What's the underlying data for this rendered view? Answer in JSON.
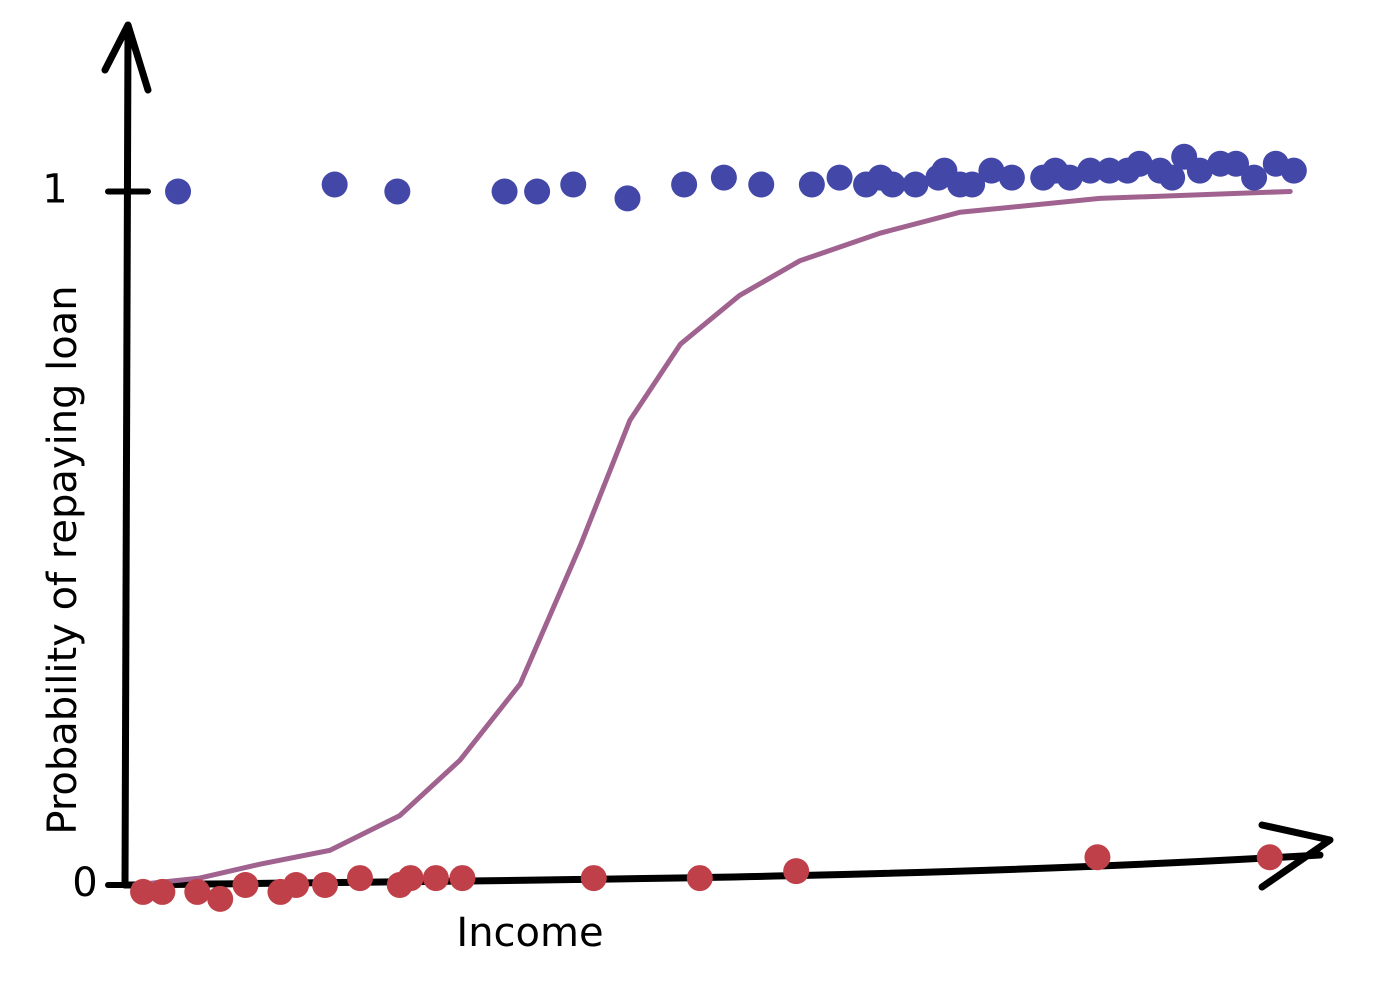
{
  "chart_data": {
    "type": "scatter",
    "xlabel": "Income",
    "ylabel": "Probability of repaying loan",
    "xlim": [
      0,
      100
    ],
    "ylim": [
      0,
      1.24
    ],
    "yticks": [
      0,
      1
    ],
    "series": [
      {
        "color": "#4347a8",
        "type": "scatter",
        "x": [
          4.4,
          17.4,
          22.6,
          31.5,
          34.2,
          37.2,
          41.7,
          46.4,
          49.7,
          52.8,
          57.0,
          59.3,
          61.5,
          62.7,
          63.7,
          65.6,
          67.5,
          68.0,
          69.3,
          70.3,
          71.9,
          73.6,
          76.2,
          77.2,
          78.4,
          80.1,
          81.7,
          83.2,
          84.2,
          85.9,
          86.9,
          87.9,
          89.2,
          90.9,
          92.2,
          93.7,
          95.5,
          97.0
        ],
        "values": [
          1.0,
          1.01,
          1.0,
          1.0,
          1.0,
          1.01,
          0.99,
          1.01,
          1.02,
          1.01,
          1.01,
          1.02,
          1.01,
          1.02,
          1.01,
          1.01,
          1.02,
          1.03,
          1.01,
          1.01,
          1.03,
          1.02,
          1.02,
          1.03,
          1.02,
          1.03,
          1.03,
          1.03,
          1.04,
          1.03,
          1.02,
          1.05,
          1.03,
          1.04,
          1.04,
          1.02,
          1.04,
          1.03
        ]
      },
      {
        "color": "#c0404a",
        "type": "scatter",
        "x": [
          1.5,
          3.1,
          6.0,
          7.9,
          10.0,
          12.9,
          14.2,
          16.6,
          19.5,
          22.8,
          23.7,
          25.8,
          28.0,
          38.9,
          47.7,
          55.7,
          80.7,
          95.0
        ],
        "values": [
          -0.01,
          -0.01,
          -0.01,
          -0.02,
          0.0,
          -0.01,
          0.0,
          0.0,
          0.01,
          0.0,
          0.01,
          0.01,
          0.01,
          0.01,
          0.01,
          0.02,
          0.04,
          0.04
        ]
      },
      {
        "color": "#a0628f",
        "type": "line",
        "x": [
          0.8,
          6.2,
          11.2,
          17.0,
          22.8,
          27.8,
          32.8,
          37.8,
          41.9,
          46.1,
          51.0,
          56.0,
          62.7,
          69.3,
          80.9,
          96.7
        ],
        "values": [
          0.0,
          0.01,
          0.03,
          0.05,
          0.1,
          0.18,
          0.29,
          0.49,
          0.67,
          0.78,
          0.85,
          0.9,
          0.94,
          0.97,
          0.99,
          1.0
        ]
      }
    ]
  }
}
